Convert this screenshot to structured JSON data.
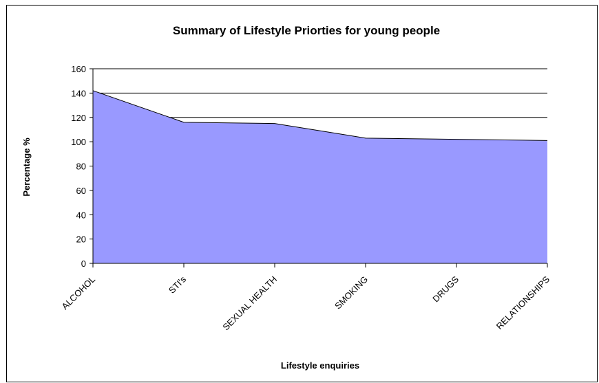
{
  "chart_data": {
    "type": "area",
    "title": "Summary of Lifestyle Priorties for young people",
    "xlabel": "Lifestyle enquiries",
    "ylabel": "Percentage %",
    "categories": [
      "ALCOHOL",
      "STI's",
      "SEXUAL HEALTH",
      "SMOKING",
      "DRUGS",
      "RELATIONSHIPS"
    ],
    "series": [
      {
        "values": [
          142,
          116,
          115,
          103,
          102,
          101
        ]
      }
    ],
    "ylim": [
      0,
      160
    ],
    "yticks": [
      0,
      20,
      40,
      60,
      80,
      100,
      120,
      140,
      160
    ],
    "grid": true,
    "legend": "none",
    "colors": {
      "fill": "#9999ff",
      "stroke": "#000000",
      "grid": "#000000"
    }
  }
}
